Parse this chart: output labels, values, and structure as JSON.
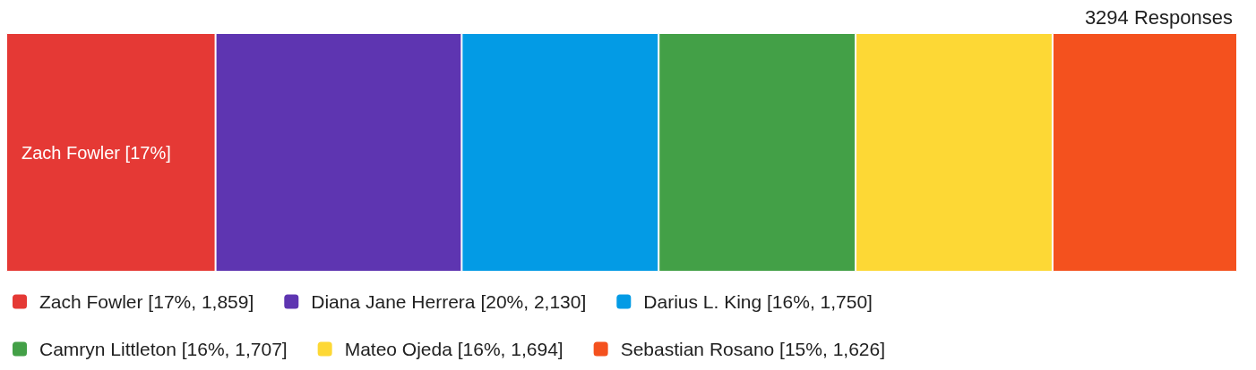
{
  "chart_data": {
    "type": "bar",
    "stacked": true,
    "orientation": "horizontal",
    "title": "3294 Responses",
    "categories": [
      null
    ],
    "xlim": [
      0,
      100
    ],
    "series": [
      {
        "name": "Zach Fowler [17%, 1,859]",
        "color": "#e53935",
        "values": [
          17
        ],
        "value_labels": [
          "Zach Fowler [17%]"
        ]
      },
      {
        "name": "Diana Jane Herrera [20%, 2,130]",
        "color": "#5e35b1",
        "values": [
          20
        ]
      },
      {
        "name": "Darius L. King [16%, 1,750]",
        "color": "#039be5",
        "values": [
          16
        ]
      },
      {
        "name": "Camryn Littleton [16%, 1,707]",
        "color": "#43a047",
        "values": [
          16
        ]
      },
      {
        "name": "Mateo Ojeda [16%, 1,694]",
        "color": "#fdd835",
        "values": [
          16
        ]
      },
      {
        "name": "Sebastian Rosano [15%, 1,626]",
        "color": "#f4511e",
        "values": [
          15
        ]
      }
    ],
    "legend": "bottom",
    "tick_labels": false
  }
}
